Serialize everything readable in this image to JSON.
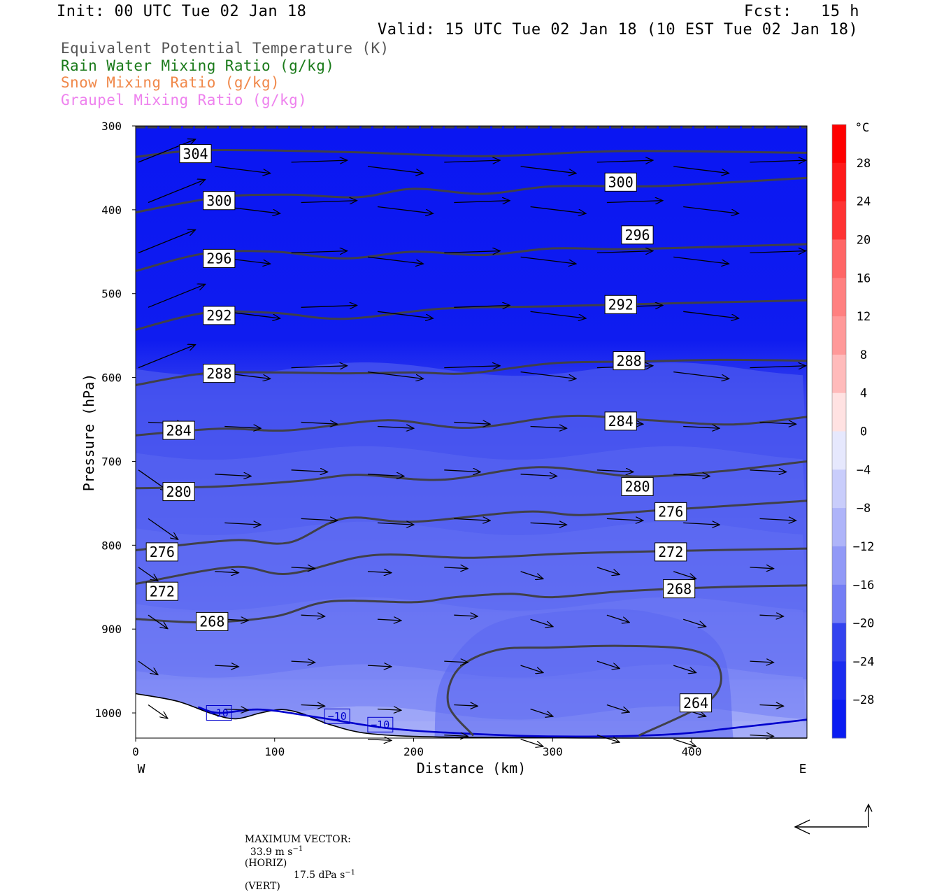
{
  "header": {
    "init": "Init: 00 UTC Tue 02 Jan 18",
    "fcst": "Fcst:   15 h",
    "valid": "Valid: 15 UTC Tue 02 Jan 18 (10 EST Tue 02 Jan 18)"
  },
  "legend": [
    {
      "text": "Equivalent Potential Temperature (K)",
      "color": "#555555"
    },
    {
      "text": "Rain Water Mixing Ratio (g/kg)",
      "color": "#1a7a1a"
    },
    {
      "text": "Snow Mixing Ratio (g/kg)",
      "color": "#f0884a"
    },
    {
      "text": "Graupel Mixing Ratio (g/kg)",
      "color": "#ee82ee"
    }
  ],
  "chart_data": {
    "type": "cross-section contour",
    "xlabel": "Distance (km)",
    "ylabel": "Pressure (hPa)",
    "x_ticks": [
      0,
      100,
      200,
      300,
      400
    ],
    "xlim": [
      0,
      483
    ],
    "y_ticks": [
      300,
      400,
      500,
      600,
      700,
      800,
      900,
      1000
    ],
    "ylim": [
      1030,
      300
    ],
    "west_label": "W",
    "east_label": "E",
    "colorbar": {
      "unit": "°C",
      "labels": [
        "28",
        "24",
        "20",
        "16",
        "12",
        "8",
        "4",
        "0",
        "−4",
        "−8",
        "−12",
        "−16",
        "−20",
        "−24",
        "−28"
      ]
    },
    "theta_e_contours": [
      {
        "value": 304,
        "label": "304",
        "points": [
          [
            0,
            337
          ],
          [
            50,
            329
          ],
          [
            150,
            331
          ],
          [
            250,
            336
          ],
          [
            350,
            330
          ],
          [
            483,
            332
          ]
        ]
      },
      {
        "value": 300,
        "label": "300",
        "points": [
          [
            0,
            403
          ],
          [
            60,
            385
          ],
          [
            110,
            382
          ],
          [
            160,
            385
          ],
          [
            200,
            375
          ],
          [
            250,
            381
          ],
          [
            300,
            372
          ],
          [
            370,
            372
          ],
          [
            420,
            368
          ],
          [
            483,
            362
          ]
        ]
      },
      {
        "value": 296,
        "label": "296",
        "points": [
          [
            0,
            473
          ],
          [
            50,
            452
          ],
          [
            100,
            450
          ],
          [
            150,
            458
          ],
          [
            200,
            450
          ],
          [
            250,
            454
          ],
          [
            300,
            446
          ],
          [
            350,
            447
          ],
          [
            420,
            444
          ],
          [
            483,
            441
          ]
        ]
      },
      {
        "value": 292,
        "label": "292",
        "points": [
          [
            0,
            543
          ],
          [
            50,
            523
          ],
          [
            100,
            523
          ],
          [
            150,
            530
          ],
          [
            220,
            518
          ],
          [
            300,
            515
          ],
          [
            400,
            511
          ],
          [
            483,
            508
          ]
        ]
      },
      {
        "value": 288,
        "label": "288",
        "points": [
          [
            0,
            609
          ],
          [
            50,
            595
          ],
          [
            100,
            594
          ],
          [
            150,
            595
          ],
          [
            200,
            594
          ],
          [
            240,
            595
          ],
          [
            300,
            583
          ],
          [
            360,
            581
          ],
          [
            420,
            579
          ],
          [
            483,
            580
          ]
        ]
      },
      {
        "value": 284,
        "label": "284",
        "points": [
          [
            0,
            669
          ],
          [
            60,
            661
          ],
          [
            110,
            663
          ],
          [
            180,
            651
          ],
          [
            240,
            660
          ],
          [
            310,
            646
          ],
          [
            370,
            651
          ],
          [
            430,
            656
          ],
          [
            483,
            647
          ]
        ]
      },
      {
        "value": 280,
        "label": "280",
        "points": [
          [
            0,
            732
          ],
          [
            60,
            730
          ],
          [
            120,
            723
          ],
          [
            160,
            716
          ],
          [
            220,
            722
          ],
          [
            290,
            707
          ],
          [
            360,
            718
          ],
          [
            420,
            712
          ],
          [
            483,
            700
          ]
        ]
      },
      {
        "value": 276,
        "label": "276",
        "points": [
          [
            0,
            806
          ],
          [
            70,
            794
          ],
          [
            110,
            797
          ],
          [
            150,
            768
          ],
          [
            200,
            772
          ],
          [
            280,
            760
          ],
          [
            320,
            764
          ],
          [
            380,
            758
          ],
          [
            483,
            747
          ]
        ]
      },
      {
        "value": 272,
        "label": "272",
        "points": [
          [
            0,
            846
          ],
          [
            70,
            826
          ],
          [
            110,
            834
          ],
          [
            170,
            812
          ],
          [
            240,
            815
          ],
          [
            310,
            810
          ],
          [
            380,
            807
          ],
          [
            483,
            804
          ]
        ]
      },
      {
        "value": 268,
        "label": "268",
        "points": [
          [
            0,
            888
          ],
          [
            50,
            892
          ],
          [
            100,
            885
          ],
          [
            140,
            867
          ],
          [
            200,
            868
          ],
          [
            230,
            862
          ],
          [
            270,
            858
          ],
          [
            300,
            862
          ],
          [
            350,
            855
          ],
          [
            420,
            850
          ],
          [
            483,
            848
          ]
        ]
      },
      {
        "value": 264,
        "label": "264",
        "points": [
          [
            243,
            1027
          ],
          [
            225,
            990
          ],
          [
            232,
            948
          ],
          [
            260,
            925
          ],
          [
            300,
            922
          ],
          [
            350,
            920
          ],
          [
            400,
            925
          ],
          [
            420,
            947
          ],
          [
            413,
            985
          ],
          [
            362,
            1027
          ]
        ]
      }
    ],
    "theta_e_labels": [
      {
        "text": "304",
        "x": 43,
        "p": 333
      },
      {
        "text": "300",
        "x": 60,
        "p": 389
      },
      {
        "text": "300",
        "x": 349,
        "p": 367
      },
      {
        "text": "296",
        "x": 60,
        "p": 458
      },
      {
        "text": "296",
        "x": 361,
        "p": 430
      },
      {
        "text": "292",
        "x": 60,
        "p": 526
      },
      {
        "text": "292",
        "x": 349,
        "p": 513
      },
      {
        "text": "288",
        "x": 60,
        "p": 595
      },
      {
        "text": "288",
        "x": 355,
        "p": 580
      },
      {
        "text": "284",
        "x": 31,
        "p": 663
      },
      {
        "text": "284",
        "x": 349,
        "p": 652
      },
      {
        "text": "280",
        "x": 31,
        "p": 736
      },
      {
        "text": "280",
        "x": 361,
        "p": 730
      },
      {
        "text": "276",
        "x": 19,
        "p": 808
      },
      {
        "text": "276",
        "x": 385,
        "p": 760
      },
      {
        "text": "272",
        "x": 19,
        "p": 855
      },
      {
        "text": "272",
        "x": 385,
        "p": 808
      },
      {
        "text": "268",
        "x": 55,
        "p": 891
      },
      {
        "text": "268",
        "x": 391,
        "p": 852
      },
      {
        "text": "264",
        "x": 403,
        "p": 988
      }
    ],
    "temperature_contour": {
      "value": -10,
      "label": "−10",
      "color": "#0000cc"
    },
    "temperature_labels": [
      {
        "text": "−10",
        "x": 60,
        "p": 1000
      },
      {
        "text": "−10",
        "x": 145,
        "p": 1004
      },
      {
        "text": "−10",
        "x": 176,
        "p": 1014
      }
    ]
  },
  "footer": {
    "max_vector_label": "MAXIMUM VECTOR:",
    "horiz_value": "33.9 m s",
    "horiz_unit": "(HORIZ)",
    "vert_value": "17.5 dPa s",
    "vert_unit": "(VERT)",
    "exponent": "−1"
  }
}
